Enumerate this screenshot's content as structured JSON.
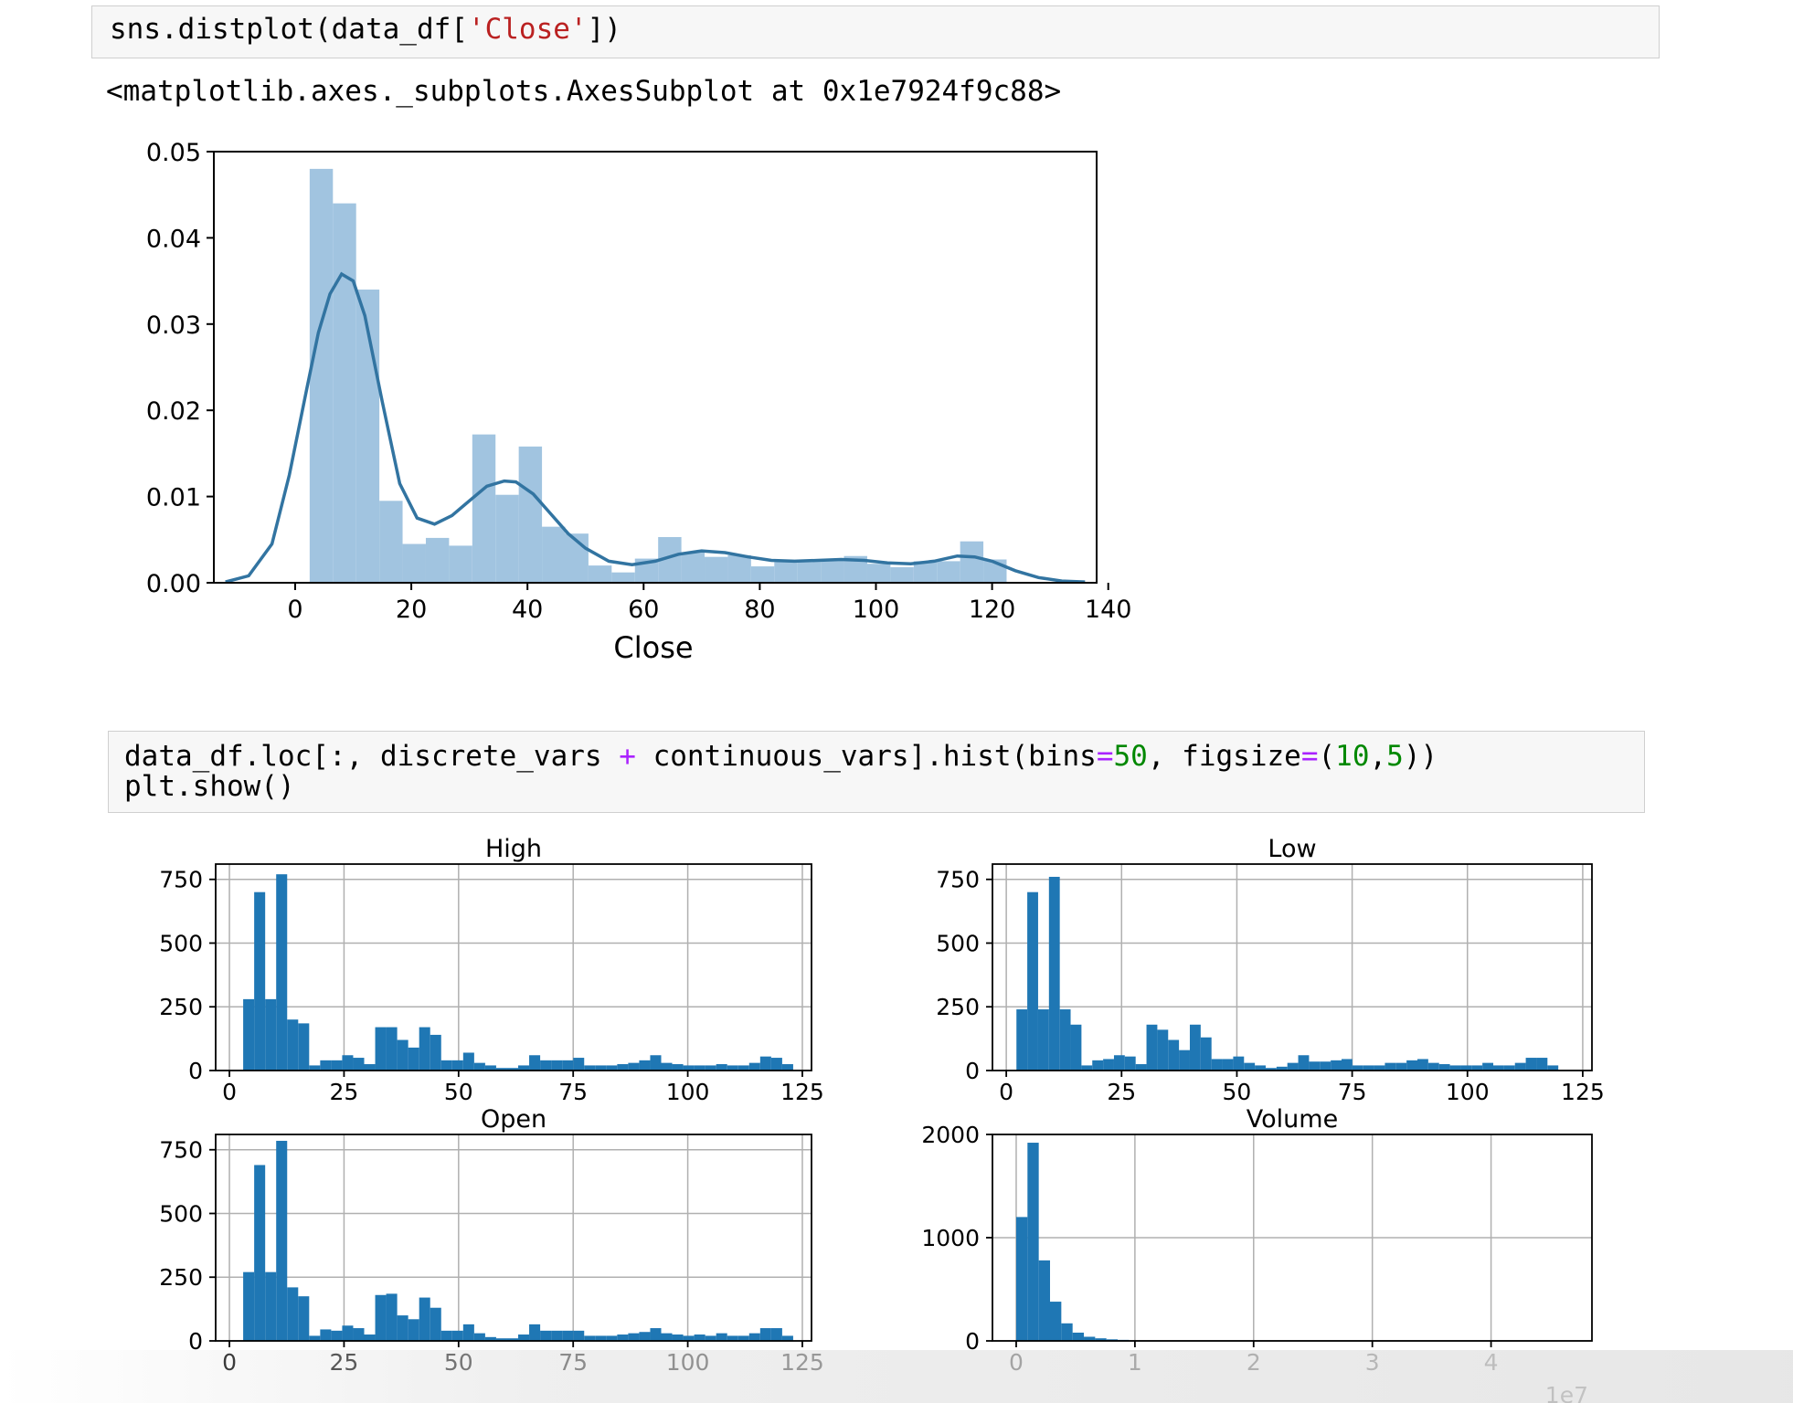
{
  "cell1": {
    "code_pre": "sns.distplot(data_df[",
    "code_str": "'Close'",
    "code_post": "])",
    "output": "<matplotlib.axes._subplots.AxesSubplot at 0x1e7924f9c88>"
  },
  "cell2": {
    "line1_a": "data_df.loc[:, discrete_vars ",
    "line1_op1": "+",
    "line1_b": " continuous_vars].hist(bins",
    "line1_op2": "=",
    "line1_n1": "50",
    "line1_c": ", figsize",
    "line1_op3": "=",
    "line1_d": "(",
    "line1_n2": "10",
    "line1_e": ",",
    "line1_n3": "5",
    "line1_f": "))",
    "line2": "plt.show()"
  },
  "colors": {
    "hist_fill": "#a1c4e0",
    "kde_line": "#3274a1",
    "bar_fill": "#1f77b4",
    "grid": "#b0b0b0"
  },
  "chart_data": [
    {
      "type": "bar",
      "subtype": "distplot-histogram-with-kde",
      "xlabel": "Close",
      "xlim": [
        -14,
        138
      ],
      "ylim": [
        0,
        0.05
      ],
      "xticks": [
        0,
        20,
        40,
        60,
        80,
        100,
        120,
        140
      ],
      "yticks": [
        "0.00",
        "0.01",
        "0.02",
        "0.03",
        "0.04",
        "0.05"
      ],
      "bin_edges": [
        2.5,
        6.5,
        10.5,
        14.5,
        18.5,
        22.5,
        26.5,
        30.5,
        34.5,
        38.5,
        42.5,
        46.5,
        50.5,
        54.5,
        58.5,
        62.5,
        66.5,
        70.5,
        74.5,
        78.5,
        82.5,
        86.5,
        90.5,
        94.5,
        98.5,
        102.5,
        106.5,
        110.5,
        114.5,
        118.5,
        122.5
      ],
      "density": [
        0.048,
        0.044,
        0.034,
        0.0095,
        0.0045,
        0.0052,
        0.0043,
        0.0172,
        0.0102,
        0.0158,
        0.0065,
        0.0057,
        0.002,
        0.0012,
        0.0028,
        0.0053,
        0.0035,
        0.003,
        0.0032,
        0.0019,
        0.0024,
        0.0025,
        0.0027,
        0.0031,
        0.0022,
        0.0018,
        0.0025,
        0.0025,
        0.0048,
        0.0027
      ],
      "kde_x": [
        -12,
        -8,
        -4,
        -1,
        2,
        4,
        6,
        8,
        10,
        12,
        15,
        18,
        21,
        24,
        27,
        30,
        33,
        36,
        38,
        41,
        44,
        47,
        50,
        54,
        58,
        62,
        66,
        70,
        74,
        78,
        82,
        86,
        90,
        94,
        98,
        102,
        106,
        110,
        114,
        117,
        120,
        124,
        128,
        132,
        136
      ],
      "kde_y": [
        0.0001,
        0.0008,
        0.0045,
        0.0125,
        0.0225,
        0.029,
        0.0335,
        0.0358,
        0.035,
        0.031,
        0.021,
        0.0115,
        0.0075,
        0.0068,
        0.0078,
        0.0095,
        0.0112,
        0.0118,
        0.0117,
        0.0103,
        0.008,
        0.0057,
        0.004,
        0.0025,
        0.0021,
        0.0025,
        0.0033,
        0.0037,
        0.0035,
        0.003,
        0.0026,
        0.0025,
        0.0026,
        0.0027,
        0.0026,
        0.0023,
        0.0022,
        0.0025,
        0.0031,
        0.003,
        0.0025,
        0.0014,
        0.0006,
        0.0002,
        0.0001
      ]
    },
    {
      "type": "bar",
      "title": "High",
      "xlim": [
        -3,
        127
      ],
      "ylim": [
        0,
        810
      ],
      "xticks": [
        0,
        25,
        50,
        75,
        100,
        125
      ],
      "yticks": [
        0,
        250,
        500,
        750
      ],
      "bin_start": 3,
      "bin_width": 2.4,
      "counts": [
        280,
        700,
        280,
        770,
        200,
        185,
        20,
        40,
        40,
        60,
        50,
        25,
        170,
        170,
        120,
        90,
        170,
        140,
        40,
        40,
        70,
        30,
        20,
        10,
        10,
        20,
        60,
        40,
        40,
        40,
        50,
        20,
        20,
        20,
        25,
        30,
        40,
        60,
        30,
        25,
        20,
        20,
        20,
        25,
        20,
        20,
        30,
        55,
        50,
        25
      ]
    },
    {
      "type": "bar",
      "title": "Low",
      "xlim": [
        -3,
        127
      ],
      "ylim": [
        0,
        810
      ],
      "xticks": [
        0,
        25,
        50,
        75,
        100,
        125
      ],
      "yticks": [
        0,
        250,
        500,
        750
      ],
      "bin_start": 2.2,
      "bin_width": 2.35,
      "counts": [
        240,
        700,
        240,
        760,
        240,
        180,
        20,
        40,
        45,
        60,
        55,
        25,
        180,
        160,
        120,
        80,
        180,
        130,
        45,
        45,
        55,
        30,
        20,
        10,
        15,
        30,
        60,
        35,
        35,
        40,
        45,
        20,
        20,
        20,
        30,
        30,
        40,
        45,
        30,
        25,
        20,
        20,
        20,
        30,
        20,
        20,
        30,
        50,
        50,
        20
      ]
    },
    {
      "type": "bar",
      "title": "Open",
      "xlim": [
        -3,
        127
      ],
      "ylim": [
        0,
        810
      ],
      "xticks": [
        0,
        25,
        50,
        75,
        100,
        125
      ],
      "yticks": [
        0,
        250,
        500,
        750
      ],
      "bin_start": 3,
      "bin_width": 2.4,
      "counts": [
        270,
        690,
        270,
        785,
        210,
        175,
        20,
        45,
        40,
        60,
        50,
        25,
        180,
        185,
        100,
        85,
        170,
        130,
        40,
        40,
        65,
        30,
        15,
        10,
        10,
        25,
        65,
        40,
        40,
        40,
        40,
        20,
        20,
        20,
        25,
        30,
        35,
        50,
        30,
        25,
        20,
        25,
        20,
        30,
        20,
        20,
        30,
        50,
        50,
        20
      ]
    },
    {
      "type": "bar",
      "title": "Volume",
      "xlim": [
        -0.2,
        4.85
      ],
      "ylim": [
        0,
        2000
      ],
      "xticks": [
        0,
        1,
        2,
        3,
        4
      ],
      "yticks": [
        0,
        1000,
        2000
      ],
      "x_offset_label": "1e7",
      "bin_start": 0,
      "bin_width": 0.095,
      "counts": [
        1200,
        1920,
        780,
        380,
        170,
        80,
        40,
        25,
        15,
        10
      ]
    }
  ]
}
